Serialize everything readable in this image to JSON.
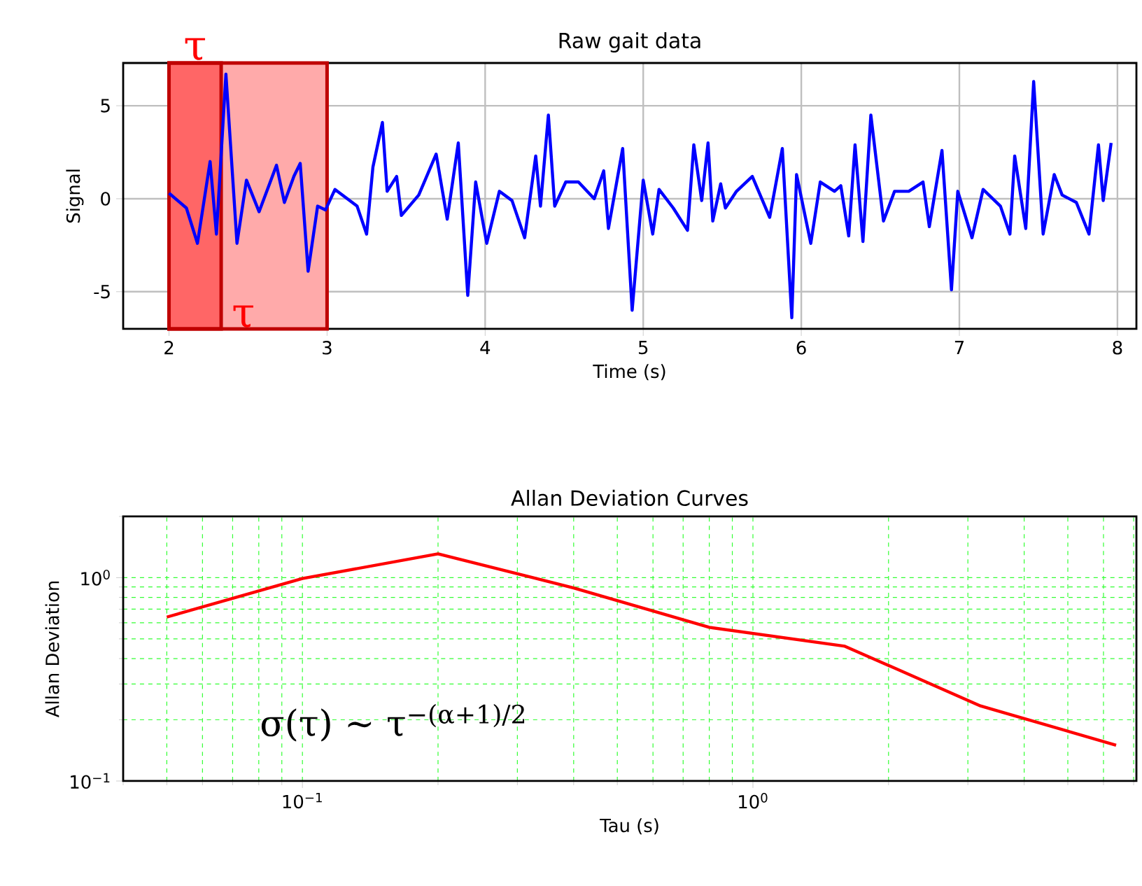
{
  "chart_data": [
    {
      "type": "line",
      "title": "Raw gait data",
      "xlabel": "Time (s)",
      "ylabel": "Signal",
      "color": "#0000ff",
      "grid": true,
      "marker": "none",
      "line_style": "solid",
      "xlim": [
        1.71,
        8.12
      ],
      "ylim": [
        -7,
        7.3
      ],
      "xticks": [
        2,
        3,
        4,
        5,
        6,
        7,
        8
      ],
      "yticks": [
        -5,
        0,
        5
      ],
      "bands": [
        {
          "axis": "x",
          "from": 2,
          "to": 3,
          "label": "τ",
          "color": "#ffaaaa"
        },
        {
          "axis": "x",
          "from": 2,
          "to": 2.33,
          "label": "τ",
          "color": "#ff6666"
        }
      ],
      "x": [
        2.0,
        2.11,
        2.18,
        2.26,
        2.3,
        2.36,
        2.43,
        2.49,
        2.57,
        2.68,
        2.73,
        2.79,
        2.83,
        2.88,
        2.94,
        2.99,
        3.05,
        3.19,
        3.25,
        3.29,
        3.35,
        3.38,
        3.44,
        3.47,
        3.58,
        3.69,
        3.76,
        3.83,
        3.89,
        3.94,
        4.01,
        4.09,
        4.17,
        4.25,
        4.32,
        4.35,
        4.4,
        4.44,
        4.51,
        4.59,
        4.69,
        4.75,
        4.78,
        4.87,
        4.93,
        5.0,
        5.06,
        5.1,
        5.19,
        5.28,
        5.32,
        5.37,
        5.41,
        5.44,
        5.49,
        5.52,
        5.59,
        5.69,
        5.8,
        5.88,
        5.94,
        5.97,
        6.06,
        6.12,
        6.21,
        6.25,
        6.3,
        6.34,
        6.39,
        6.44,
        6.52,
        6.59,
        6.68,
        6.77,
        6.81,
        6.89,
        6.95,
        6.99,
        7.08,
        7.15,
        7.26,
        7.32,
        7.35,
        7.42,
        7.47,
        7.53,
        7.6,
        7.65,
        7.74,
        7.82,
        7.88,
        7.91,
        7.96
      ],
      "values": [
        0.3,
        -0.5,
        -2.4,
        2.0,
        -1.9,
        6.7,
        -2.4,
        1.0,
        -0.7,
        1.8,
        -0.2,
        1.2,
        1.9,
        -3.9,
        -0.4,
        -0.6,
        0.5,
        -0.4,
        -1.9,
        1.7,
        4.1,
        0.4,
        1.2,
        -0.9,
        0.2,
        2.4,
        -1.1,
        3.0,
        -5.2,
        0.9,
        -2.4,
        0.4,
        -0.1,
        -2.1,
        2.3,
        -0.4,
        4.5,
        -0.4,
        0.9,
        0.9,
        0.0,
        1.5,
        -1.6,
        2.7,
        -6.0,
        1.0,
        -1.9,
        0.5,
        -0.5,
        -1.7,
        2.9,
        -0.1,
        3.0,
        -1.2,
        0.8,
        -0.5,
        0.4,
        1.2,
        -1.0,
        2.7,
        -6.4,
        1.3,
        -2.4,
        0.9,
        0.4,
        0.7,
        -2.0,
        2.9,
        -2.3,
        4.5,
        -1.2,
        0.4,
        0.4,
        0.9,
        -1.5,
        2.6,
        -4.9,
        0.4,
        -2.1,
        0.5,
        -0.4,
        -1.9,
        2.3,
        -1.6,
        6.3,
        -1.9,
        1.3,
        0.2,
        -0.2,
        -1.9,
        2.9,
        -0.1,
        3.0
      ]
    },
    {
      "type": "line",
      "title": "Allan Deviation Curves",
      "xlabel": "Tau (s)",
      "ylabel": "Allan Deviation",
      "color": "#ff0000",
      "grid": true,
      "marker": "none",
      "line_style": "solid",
      "log": "xy",
      "xlim": [
        0.04,
        7.1
      ],
      "ylim": [
        0.1,
        2
      ],
      "xticks": [
        {
          "value": 0.1,
          "label": "10$^{−1}$"
        },
        {
          "value": 1,
          "label": "10$^{0}$"
        }
      ],
      "yticks": [
        {
          "value": 0.1,
          "label": "10$^{−1}$"
        },
        {
          "value": 1,
          "label": "10$^{0}$"
        }
      ],
      "annotations": [
        "σ(τ) ~ τ$^{−(α+1)/2}$"
      ],
      "x": [
        0.05,
        0.1,
        0.2,
        0.4,
        0.8,
        1.6,
        3.2,
        6.4
      ],
      "values": [
        0.64,
        0.99,
        1.31,
        0.89,
        0.57,
        0.46,
        0.234,
        0.15
      ]
    }
  ]
}
